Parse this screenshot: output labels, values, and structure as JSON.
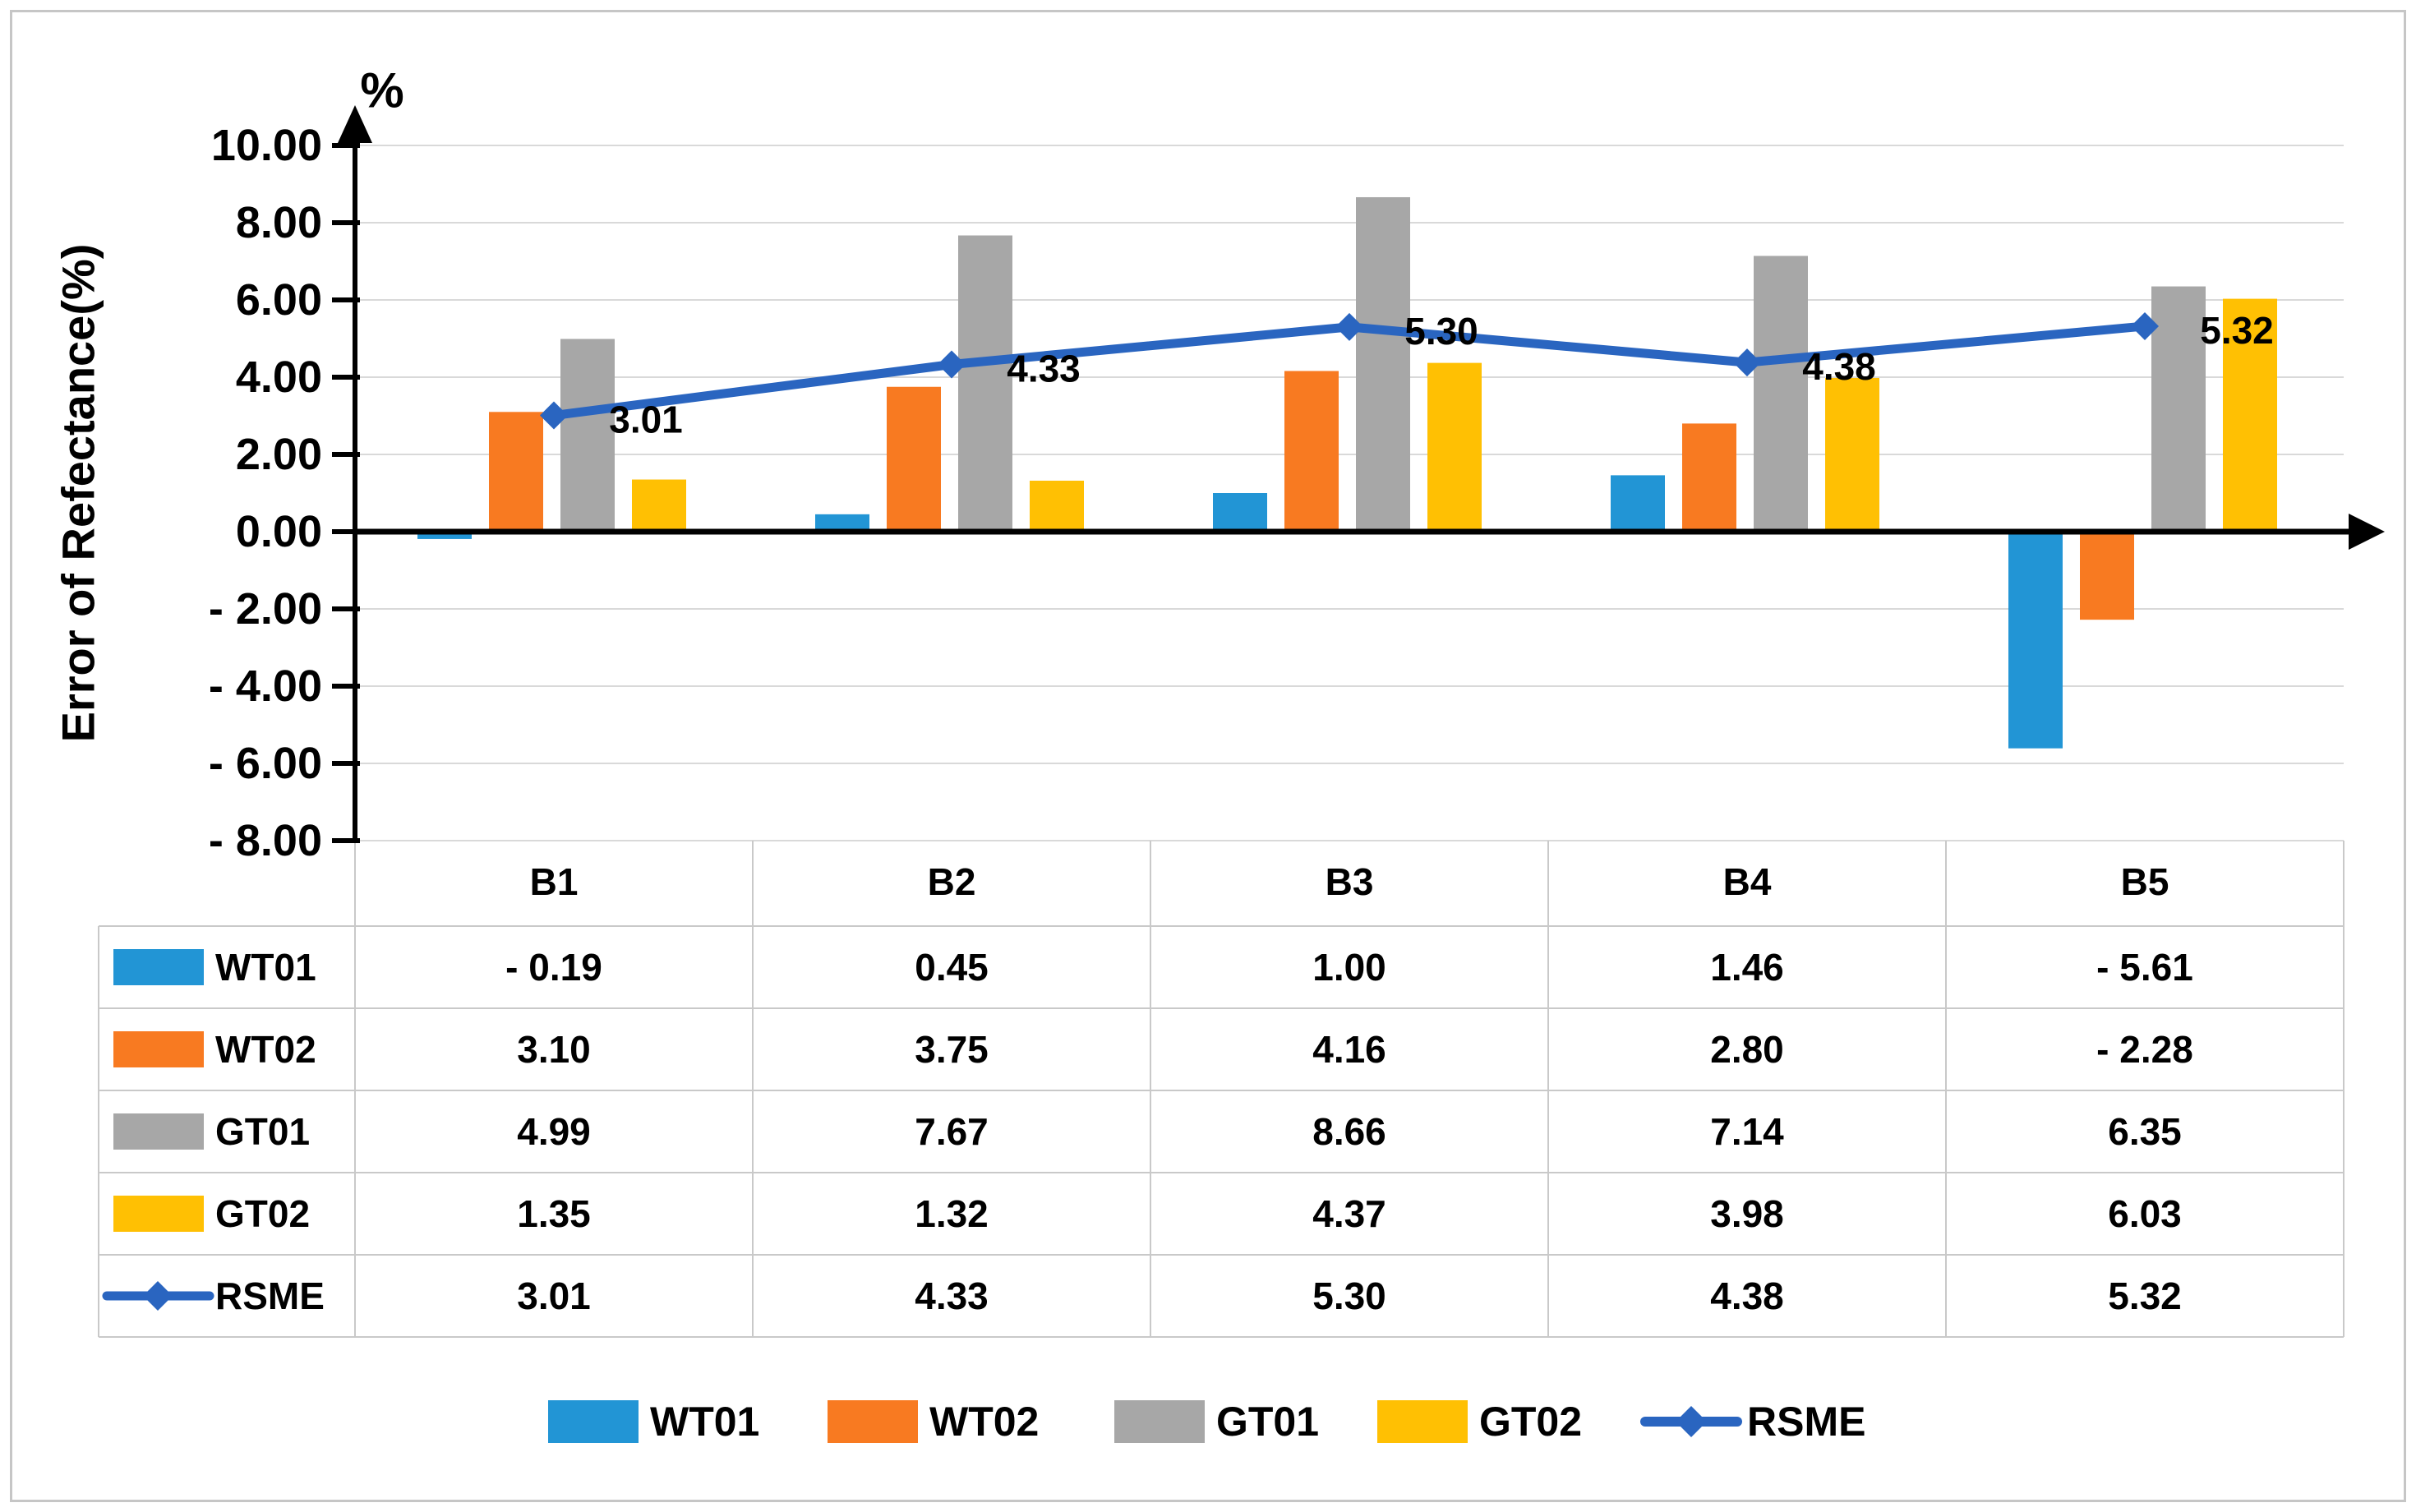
{
  "chart_data": {
    "type": "bar+line",
    "title": "",
    "unit_symbol": "%",
    "ylabel": "Error of Refectance(%)",
    "xlabel": "",
    "categories": [
      "B1",
      "B2",
      "B3",
      "B4",
      "B5"
    ],
    "series": [
      {
        "name": "WT01",
        "type": "bar",
        "color": "#2295d5",
        "values": [
          -0.19,
          0.45,
          1.0,
          1.46,
          -5.61
        ]
      },
      {
        "name": "WT02",
        "type": "bar",
        "color": "#f87a21",
        "values": [
          3.1,
          3.75,
          4.16,
          2.8,
          -2.28
        ]
      },
      {
        "name": "GT01",
        "type": "bar",
        "color": "#a7a7a7",
        "values": [
          4.99,
          7.67,
          8.66,
          7.14,
          6.35
        ]
      },
      {
        "name": "GT02",
        "type": "bar",
        "color": "#ffc003",
        "values": [
          1.35,
          1.32,
          4.37,
          3.98,
          6.03
        ]
      },
      {
        "name": "RSME",
        "type": "line",
        "color": "#2a65c0",
        "values": [
          3.01,
          4.33,
          5.3,
          4.38,
          5.32
        ],
        "point_labels": [
          "3.01",
          "4.33",
          "5.30",
          "4.38",
          "5.32"
        ]
      }
    ],
    "y_ticks": [
      {
        "value": 10,
        "label": "10.00"
      },
      {
        "value": 8,
        "label": "8.00"
      },
      {
        "value": 6,
        "label": "6.00"
      },
      {
        "value": 4,
        "label": "4.00"
      },
      {
        "value": 2,
        "label": "2.00"
      },
      {
        "value": 0,
        "label": "0.00"
      },
      {
        "value": -2,
        "label": "- 2.00"
      },
      {
        "value": -4,
        "label": "- 4.00"
      },
      {
        "value": -6,
        "label": "- 6.00"
      },
      {
        "value": -8,
        "label": "- 8.00"
      }
    ],
    "ylim": [
      -8,
      10
    ],
    "grid": true,
    "gridline_color": "#d9d9d9",
    "axis_color": "#000000",
    "legend_position": "bottom"
  },
  "data_table": {
    "border_color": "#c9c9c9",
    "columns": [
      "B1",
      "B2",
      "B3",
      "B4",
      "B5"
    ],
    "rows": [
      {
        "name": "WT01",
        "key": "bar",
        "color": "#2295d5",
        "cells": [
          "- 0.19",
          "0.45",
          "1.00",
          "1.46",
          "- 5.61"
        ]
      },
      {
        "name": "WT02",
        "key": "bar",
        "color": "#f87a21",
        "cells": [
          "3.10",
          "3.75",
          "4.16",
          "2.80",
          "- 2.28"
        ]
      },
      {
        "name": "GT01",
        "key": "bar",
        "color": "#a7a7a7",
        "cells": [
          "4.99",
          "7.67",
          "8.66",
          "7.14",
          "6.35"
        ]
      },
      {
        "name": "GT02",
        "key": "bar",
        "color": "#ffc003",
        "cells": [
          "1.35",
          "1.32",
          "4.37",
          "3.98",
          "6.03"
        ]
      },
      {
        "name": "RSME",
        "key": "line",
        "color": "#2a65c0",
        "cells": [
          "3.01",
          "4.33",
          "5.30",
          "4.38",
          "5.32"
        ]
      }
    ]
  },
  "legend": {
    "items": [
      {
        "label": "WT01",
        "key": "bar",
        "color": "#2295d5"
      },
      {
        "label": "WT02",
        "key": "bar",
        "color": "#f87a21"
      },
      {
        "label": "GT01",
        "key": "bar",
        "color": "#a7a7a7"
      },
      {
        "label": "GT02",
        "key": "bar",
        "color": "#ffc003"
      },
      {
        "label": "RSME",
        "key": "line",
        "color": "#2a65c0"
      }
    ]
  }
}
